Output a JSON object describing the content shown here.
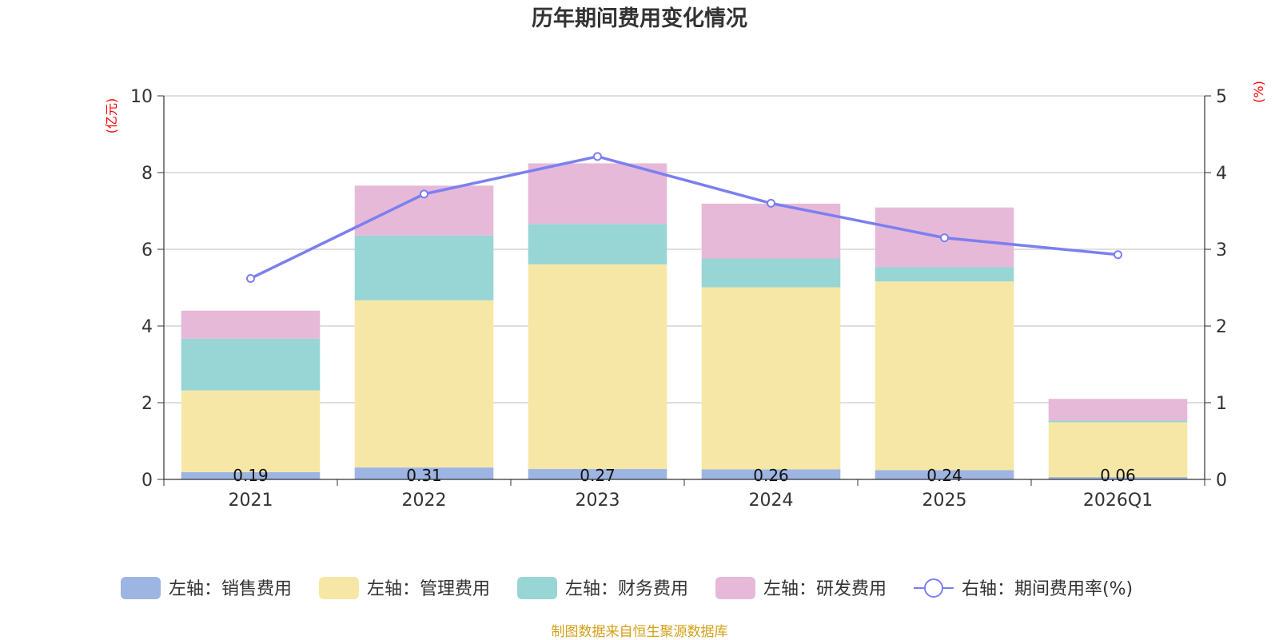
{
  "chart_data": {
    "type": "bar",
    "title": "历年期间费用变化情况",
    "categories": [
      "2021",
      "2022",
      "2023",
      "2024",
      "2025",
      "2026Q1"
    ],
    "left_axis": {
      "unit": "(亿元)",
      "ylim": [
        0,
        10
      ],
      "ticks": [
        "0",
        "2",
        "4",
        "6",
        "8",
        "10"
      ]
    },
    "right_axis": {
      "unit": "(%)",
      "ylim": [
        0,
        5
      ],
      "ticks": [
        "0",
        "1",
        "2",
        "3",
        "4",
        "5"
      ]
    },
    "series": [
      {
        "name": "左轴：销售费用",
        "axis": "left",
        "stack": true,
        "color": "#9db5e2",
        "values": [
          0.19,
          0.31,
          0.27,
          0.26,
          0.24,
          0.06
        ],
        "labels": [
          "0.19",
          "0.31",
          "0.27",
          "0.26",
          "0.24",
          "0.06"
        ]
      },
      {
        "name": "左轴：管理费用",
        "axis": "left",
        "stack": true,
        "color": "#f7e7a6",
        "values": [
          2.13,
          4.36,
          5.34,
          4.75,
          4.92,
          1.43
        ]
      },
      {
        "name": "左轴：财务费用",
        "axis": "left",
        "stack": true,
        "color": "#98d5d5",
        "values": [
          1.35,
          1.69,
          1.05,
          0.75,
          0.38,
          0.05
        ]
      },
      {
        "name": "左轴：研发费用",
        "axis": "left",
        "stack": true,
        "color": "#e6b9d8",
        "values": [
          0.73,
          1.3,
          1.58,
          1.43,
          1.55,
          0.56
        ]
      },
      {
        "name": "右轴：期间费用率(%)",
        "axis": "right",
        "type": "line",
        "color": "#7b7ff0",
        "values": [
          2.62,
          3.72,
          4.21,
          3.6,
          3.15,
          2.93
        ]
      }
    ],
    "grid": true,
    "legend_position": "bottom"
  },
  "footer": {
    "source": "制图数据来自恒生聚源数据库"
  }
}
